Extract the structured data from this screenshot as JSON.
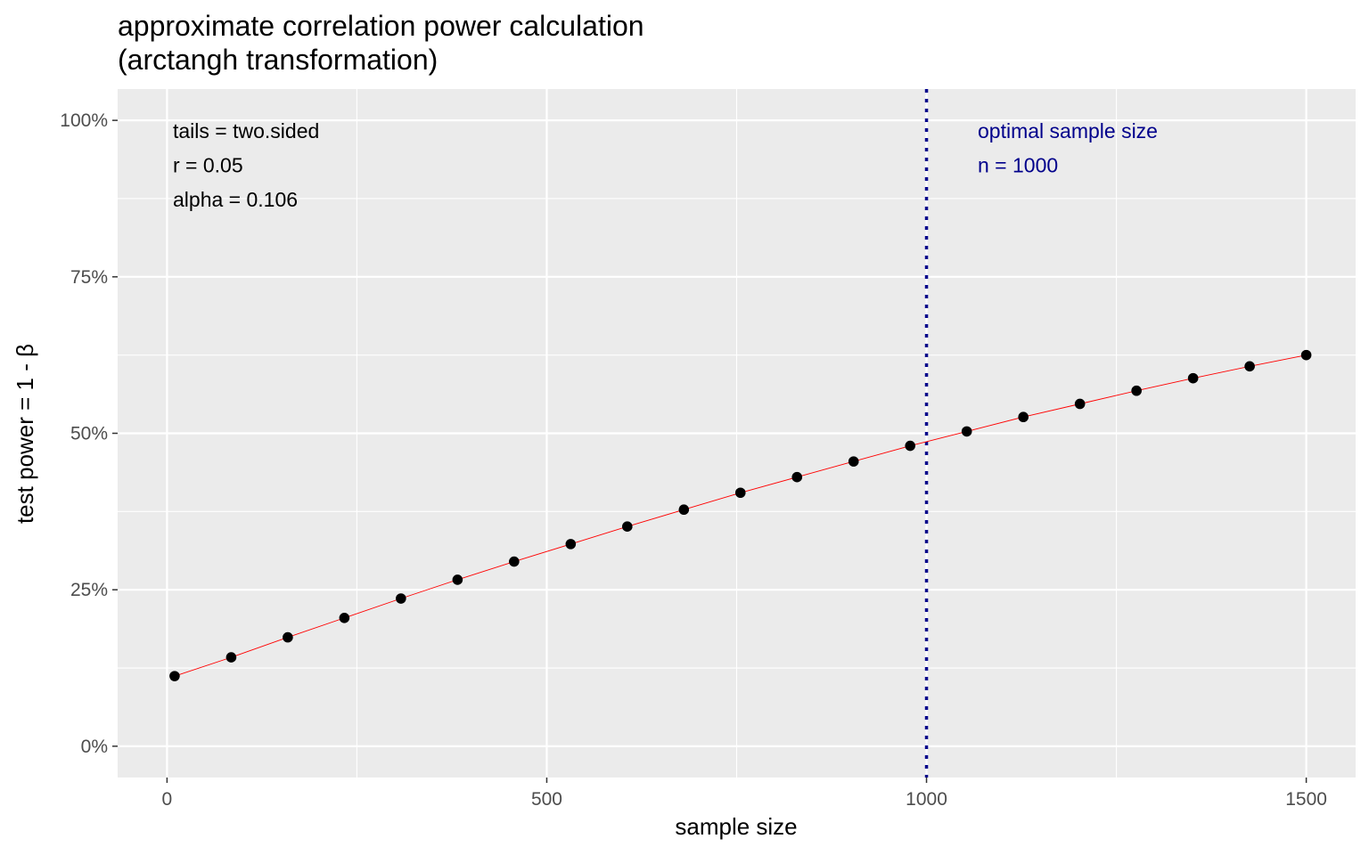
{
  "chart_data": {
    "type": "line",
    "title": "approximate correlation power calculation",
    "subtitle": "(arctangh transformation)",
    "xlabel": "sample size",
    "ylabel": "test power = 1 - β",
    "xlim": [
      -65,
      1565
    ],
    "ylim": [
      -0.05,
      1.05
    ],
    "x_ticks": [
      0,
      500,
      1000,
      1500
    ],
    "x_tick_labels": [
      "0",
      "500",
      "1000",
      "1500"
    ],
    "y_ticks": [
      0,
      0.25,
      0.5,
      0.75,
      1.0
    ],
    "y_tick_labels": [
      "0%",
      "25%",
      "50%",
      "75%",
      "100%"
    ],
    "grid": true,
    "series": [
      {
        "line_color": "#ff0000",
        "point_color": "#000000",
        "x": [
          10,
          84.5,
          159,
          233.5,
          308,
          382.5,
          457,
          531.5,
          606,
          680.5,
          755,
          829.5,
          904,
          978.5,
          1053,
          1127.5,
          1202,
          1276.5,
          1351,
          1425.5,
          1500
        ],
        "y": [
          0.112,
          0.142,
          0.174,
          0.205,
          0.236,
          0.266,
          0.295,
          0.323,
          0.351,
          0.378,
          0.405,
          0.43,
          0.455,
          0.48,
          0.503,
          0.526,
          0.547,
          0.568,
          0.588,
          0.607,
          0.625
        ]
      }
    ],
    "reference_line": {
      "x": 1000,
      "color": "#00008b",
      "style": "dotted"
    },
    "annotations_left": [
      "tails = two.sided",
      "r = 0.05",
      "alpha = 0.106"
    ],
    "annotations_right": [
      "optimal sample size",
      "n = 1000"
    ],
    "annotation_right_color": "#00008b",
    "panel_color": "#ebebeb",
    "grid_color": "#ffffff"
  }
}
